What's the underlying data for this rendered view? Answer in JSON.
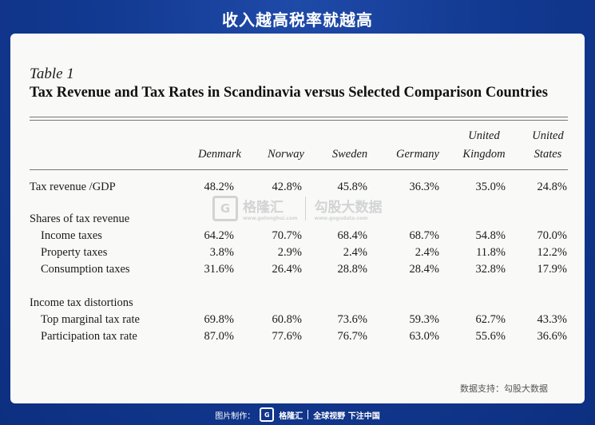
{
  "banner": {
    "title": "收入越高税率就越高"
  },
  "table": {
    "label": "Table 1",
    "title": "Tax Revenue and Tax Rates in Scandinavia versus Selected Comparison Countries",
    "headers": [
      {
        "line1": "",
        "line2": "Denmark"
      },
      {
        "line1": "",
        "line2": "Norway"
      },
      {
        "line1": "",
        "line2": "Sweden"
      },
      {
        "line1": "",
        "line2": "Germany"
      },
      {
        "line1": "United",
        "line2": "Kingdom"
      },
      {
        "line1": "United",
        "line2": "States"
      }
    ],
    "rows": [
      {
        "label": "Tax revenue /GDP",
        "values": [
          "48.2%",
          "42.8%",
          "45.8%",
          "36.3%",
          "35.0%",
          "24.8%"
        ]
      },
      {
        "label": "Shares of tax revenue",
        "values": []
      },
      {
        "label": "Income taxes",
        "values": [
          "64.2%",
          "70.7%",
          "68.4%",
          "68.7%",
          "54.8%",
          "70.0%"
        ]
      },
      {
        "label": "Property taxes",
        "values": [
          "3.8%",
          "2.9%",
          "2.4%",
          "2.4%",
          "11.8%",
          "12.2%"
        ]
      },
      {
        "label": "Consumption taxes",
        "values": [
          "31.6%",
          "26.4%",
          "28.8%",
          "28.4%",
          "32.8%",
          "17.9%"
        ]
      },
      {
        "label": "Income tax distortions",
        "values": []
      },
      {
        "label": "Top marginal tax rate",
        "values": [
          "69.8%",
          "60.8%",
          "73.6%",
          "59.3%",
          "62.7%",
          "43.3%"
        ]
      },
      {
        "label": "Participation tax rate",
        "values": [
          "87.0%",
          "77.6%",
          "76.7%",
          "63.0%",
          "55.6%",
          "36.6%"
        ]
      }
    ]
  },
  "watermark": {
    "logo_char": "G",
    "name": "格隆汇",
    "url": "www.gelonghui.com",
    "partner": "勾股大数据",
    "partner_url": "www.gogudata.com"
  },
  "source": "数据支持：勾股大数据",
  "footer": {
    "prefix": "图片制作：",
    "logo_char": "G",
    "brand": "格隆汇",
    "slogan": "全球视野 下注中国"
  }
}
